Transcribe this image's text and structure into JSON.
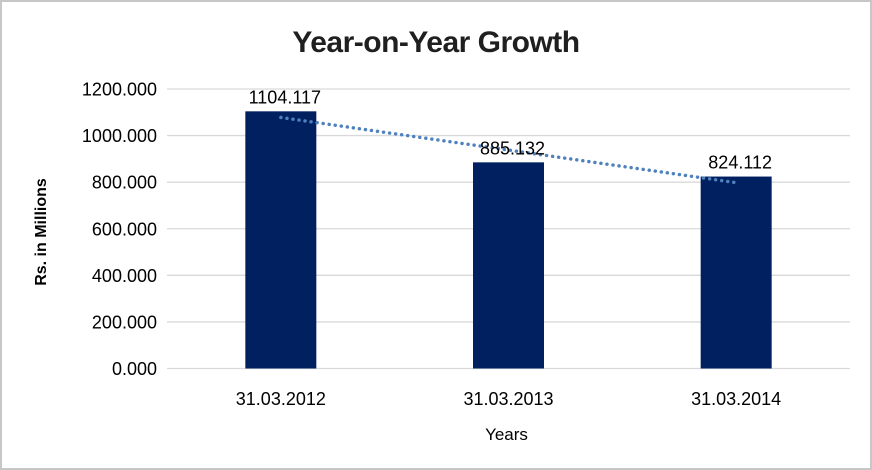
{
  "chart_data": {
    "type": "bar",
    "title": "Year-on-Year Growth",
    "xlabel": "Years",
    "ylabel": "Rs. in Millions",
    "categories": [
      "31.03.2012",
      "31.03.2013",
      "31.03.2014"
    ],
    "values": [
      1104.117,
      885.132,
      824.112
    ],
    "data_labels": [
      "1104.117",
      "885.132",
      "824.112"
    ],
    "ytick_labels": [
      "0.000",
      "200.000",
      "400.000",
      "600.000",
      "800.000",
      "1000.000",
      "1200.000"
    ],
    "ylim": [
      0,
      1200
    ],
    "grid": "horizontal",
    "legend": "none",
    "trendline": {
      "type": "linear",
      "style": "dotted"
    },
    "colors": {
      "bar": "#002060",
      "trendline": "#4E81BD",
      "gridline": "#D9D9D9",
      "text": "#000000",
      "title_text": "#1F1F1F",
      "chart_border": "#C7C7C7",
      "background": "#FFFFFF"
    }
  }
}
